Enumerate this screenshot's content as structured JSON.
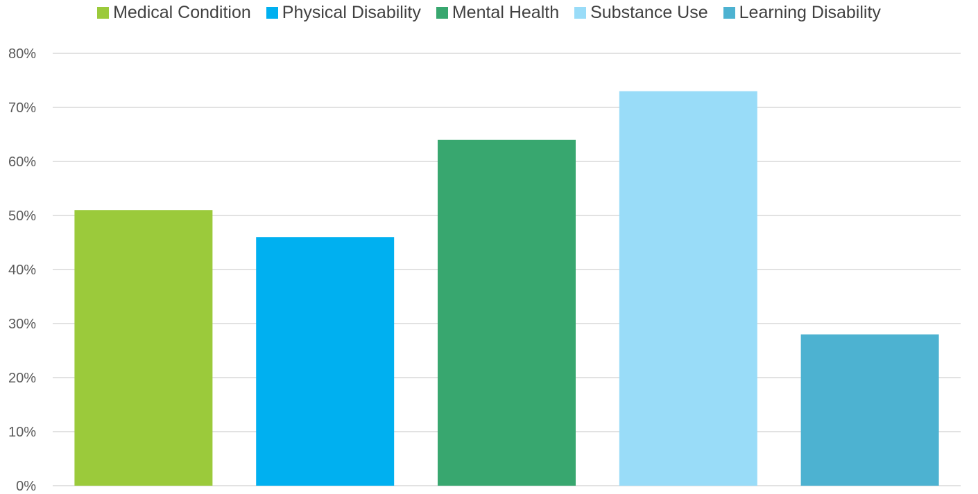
{
  "chart_data": {
    "type": "bar",
    "title": "",
    "xlabel": "",
    "ylabel": "",
    "categories": [
      "Medical Condition",
      "Physical Disability",
      "Mental Health",
      "Substance Use",
      "Learning Disability"
    ],
    "values": [
      51,
      46,
      64,
      73,
      28
    ],
    "colors": [
      "#9bca3b",
      "#00b0f0",
      "#38a76f",
      "#99dcf8",
      "#4db2d1"
    ],
    "ylim": [
      0,
      80
    ],
    "yticks": [
      0,
      10,
      20,
      30,
      40,
      50,
      60,
      70,
      80
    ],
    "ytick_labels": [
      "0%",
      "10%",
      "20%",
      "30%",
      "40%",
      "50%",
      "60%",
      "70%",
      "80%"
    ],
    "grid": true,
    "legend": "top-center"
  }
}
